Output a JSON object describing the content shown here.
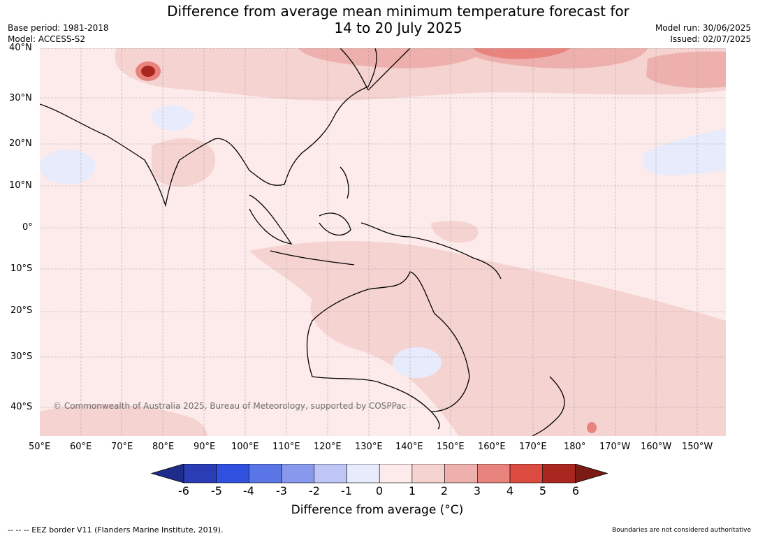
{
  "title_line1": "Difference from average mean minimum temperature forecast for",
  "title_line2": "14 to 20 July 2025",
  "meta_left": [
    "Base period: 1981-2018",
    "Model: ACCESS-S2"
  ],
  "meta_right": [
    "Model run: 30/06/2025",
    "Issued: 02/07/2025"
  ],
  "lat_labels": [
    "40°N",
    "30°N",
    "20°N",
    "10°N",
    "0°",
    "10°S",
    "20°S",
    "30°S",
    "40°S"
  ],
  "lon_labels": [
    "50°E",
    "60°E",
    "70°E",
    "80°E",
    "90°E",
    "100°E",
    "110°E",
    "120°E",
    "130°E",
    "140°E",
    "150°E",
    "160°E",
    "170°E",
    "180°",
    "170°W",
    "160°W",
    "150°W"
  ],
  "copyright": "© Commonwealth of Australia 2025, Bureau of Meteorology, supported by COSPPac",
  "colorbar": {
    "ticks": [
      "-6",
      "-5",
      "-4",
      "-3",
      "-2",
      "-1",
      "0",
      "1",
      "2",
      "3",
      "4",
      "5",
      "6"
    ],
    "colors": [
      "#1f2c8a",
      "#2a3db5",
      "#3050e0",
      "#5a75e6",
      "#8898ec",
      "#bdc6f4",
      "#e8ebfb",
      "#fcebea",
      "#f5d3d1",
      "#eeb0ad",
      "#e8837d",
      "#db4b40",
      "#a9271f",
      "#7a1b14"
    ],
    "label": "Difference from average (°C)"
  },
  "footer_left": "--  --  -- EEZ border V11 (Flanders Marine Institute, 2019).",
  "footer_right": "Boundaries are not considered authoritative"
}
